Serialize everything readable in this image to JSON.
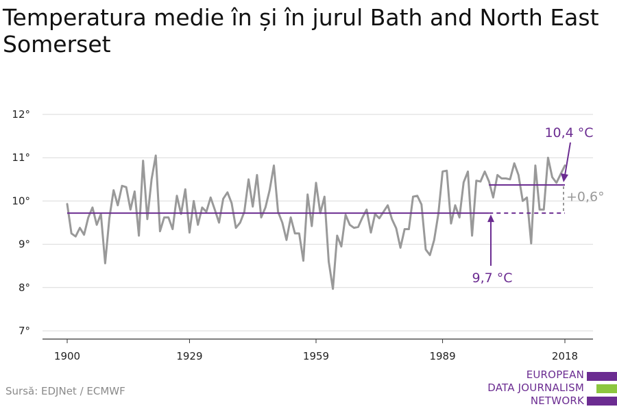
{
  "title": "Temperatura medie în și în jurul Bath and North East Somerset",
  "source": "Sursă: EDJNet / ECMWF",
  "logo": {
    "lines": [
      "EUROPEAN",
      "DATA JOURNALISM",
      "NETWORK"
    ],
    "colors": [
      "#6b2c91",
      "#8cc63f",
      "#6b2c91"
    ]
  },
  "colors": {
    "series": "#999999",
    "average": "#6b2c91",
    "annotation": "#999999"
  },
  "chart_data": {
    "type": "line",
    "x_ticks": [
      1900,
      1929,
      1959,
      1989,
      2018
    ],
    "y_ticks": [
      7,
      8,
      9,
      10,
      11,
      12
    ],
    "y_tick_labels": [
      "7°",
      "8°",
      "9°",
      "10°",
      "11°",
      "12°"
    ],
    "ylim": [
      7,
      12
    ],
    "xlim": [
      1900,
      2020
    ],
    "grid": true,
    "series": [
      {
        "x_start": 1900,
        "x_step": 1,
        "values": [
          9.93,
          9.25,
          9.18,
          9.38,
          9.22,
          9.62,
          9.85,
          9.45,
          9.7,
          8.56,
          9.6,
          10.25,
          9.9,
          10.35,
          10.32,
          9.8,
          10.22,
          9.2,
          10.93,
          9.58,
          10.5,
          11.05,
          9.3,
          9.62,
          9.62,
          9.35,
          10.12,
          9.7,
          10.27,
          9.27,
          10.0,
          9.45,
          9.85,
          9.75,
          10.08,
          9.8,
          9.5,
          10.05,
          10.2,
          9.95,
          9.38,
          9.5,
          9.75,
          10.5,
          9.87,
          10.6,
          9.62,
          9.85,
          10.25,
          10.82,
          9.75,
          9.5,
          9.1,
          9.62,
          9.25,
          9.25,
          8.62,
          10.15,
          9.42,
          10.42,
          9.72,
          10.1,
          8.6,
          7.97,
          9.2,
          8.95,
          9.68,
          9.45,
          9.38,
          9.4,
          9.62,
          9.8,
          9.27,
          9.7,
          9.6,
          9.75,
          9.9,
          9.58,
          9.37,
          8.92,
          9.35,
          9.35,
          10.1,
          10.12,
          9.92,
          8.88,
          8.75,
          9.1,
          9.7,
          10.68,
          10.7,
          9.48,
          9.9,
          9.62,
          10.43,
          10.68,
          9.2,
          10.47,
          10.45,
          10.68,
          10.45,
          10.08,
          10.6,
          10.52,
          10.52,
          10.5,
          10.87,
          10.6,
          10.0,
          10.08,
          9.02,
          10.82,
          9.8,
          9.8,
          11.0,
          10.55,
          10.42,
          10.62,
          10.82
        ]
      }
    ],
    "reference_lines": [
      {
        "label": "9,7 °C",
        "value": 9.72,
        "x_from": 1900,
        "x_to": 2018,
        "solid_to": 2000
      },
      {
        "label": "10,4 °C",
        "value": 10.37,
        "x_from": 2000,
        "x_to": 2018
      }
    ],
    "difference_label": "+0,6°"
  }
}
